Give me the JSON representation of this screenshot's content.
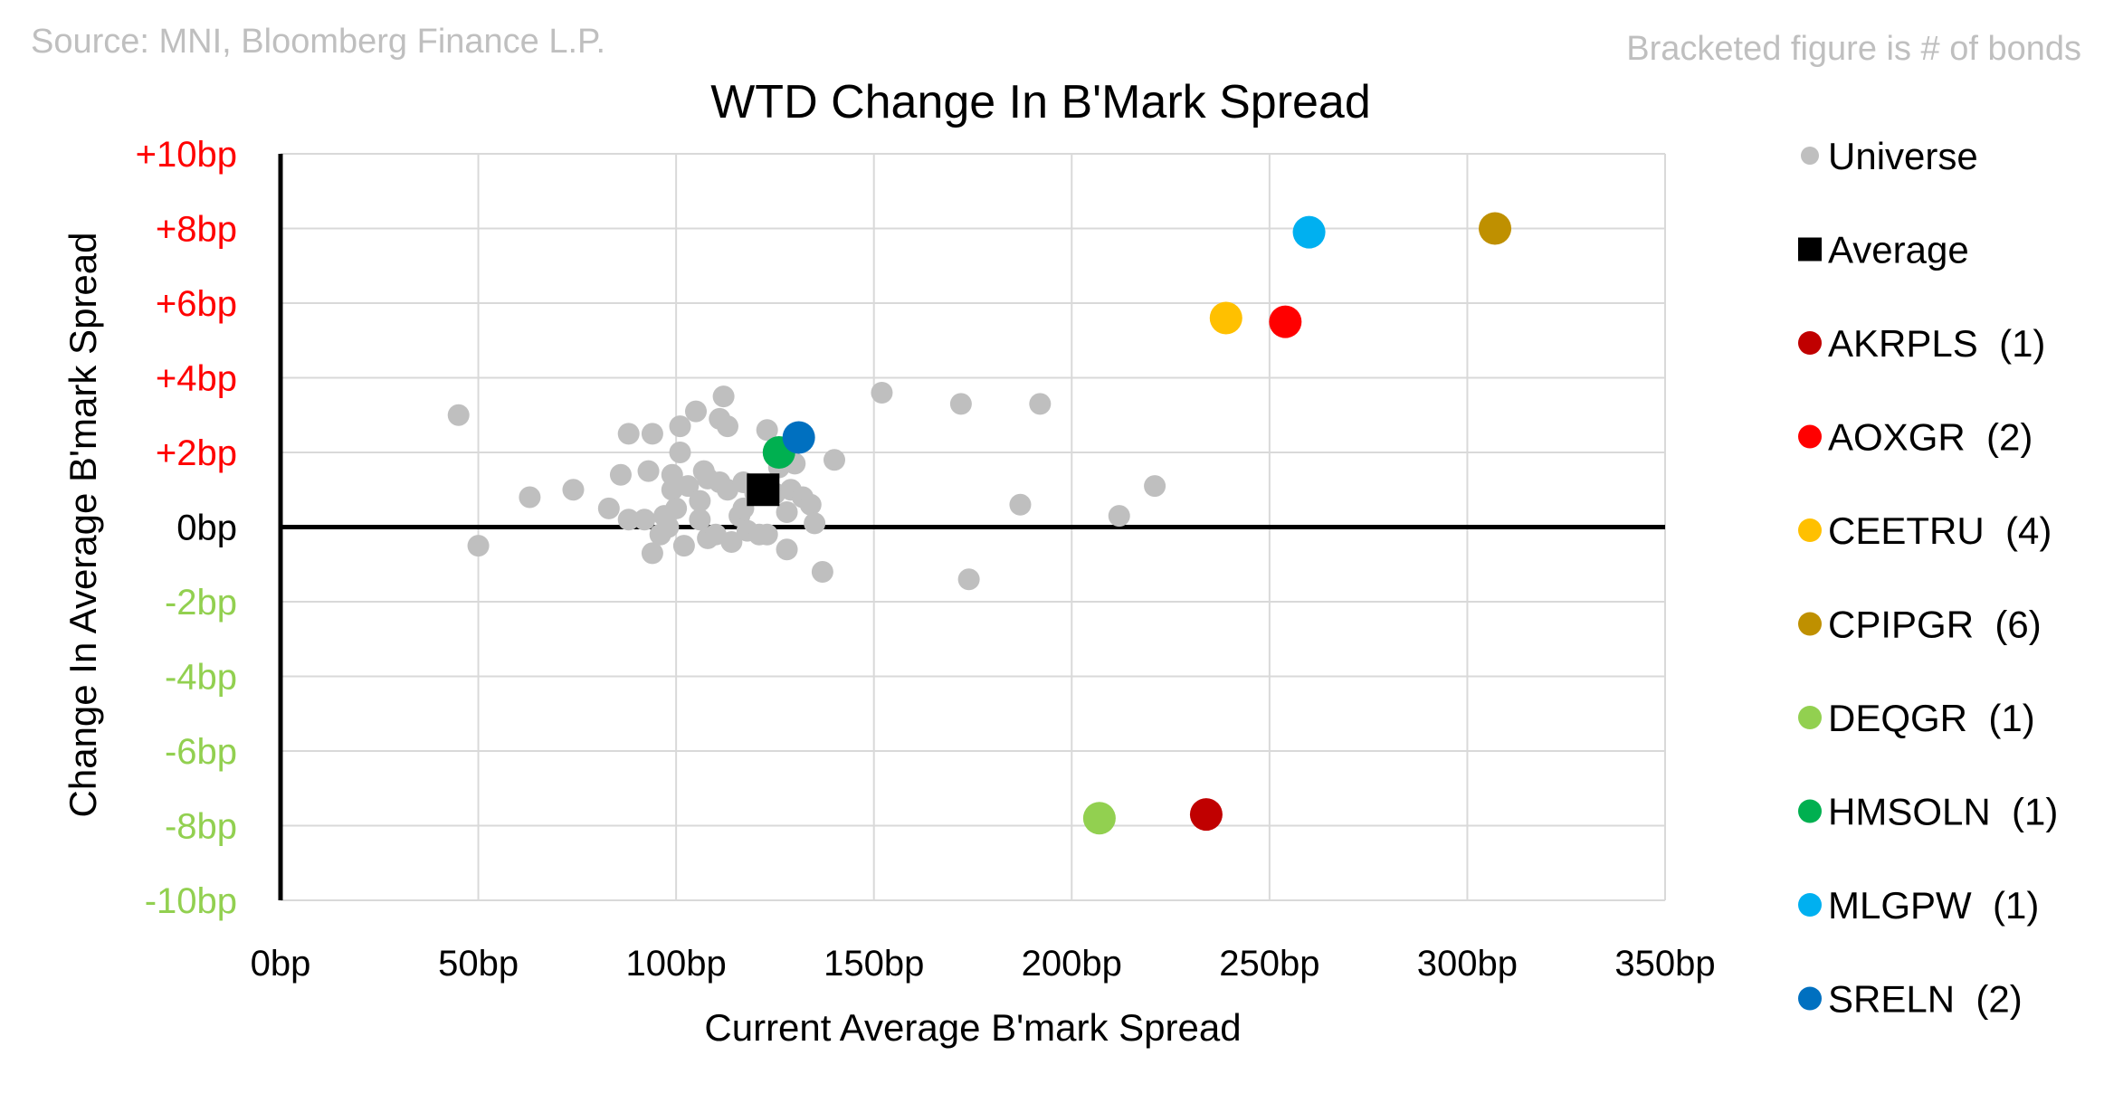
{
  "source_note": "Source: MNI, Bloomberg Finance L.P.",
  "bracket_note": "Bracketed figure is # of bonds",
  "chart_data": {
    "type": "scatter",
    "title": "WTD Change In B'Mark Spread",
    "xlabel": "Current Average B'mark Spread",
    "ylabel": "Change In Average B'mark Spread",
    "xlim": [
      0,
      350
    ],
    "ylim": [
      -10,
      10
    ],
    "x_ticks": [
      {
        "value": 0,
        "label": "0bp"
      },
      {
        "value": 50,
        "label": "50bp"
      },
      {
        "value": 100,
        "label": "100bp"
      },
      {
        "value": 150,
        "label": "150bp"
      },
      {
        "value": 200,
        "label": "200bp"
      },
      {
        "value": 250,
        "label": "250bp"
      },
      {
        "value": 300,
        "label": "300bp"
      },
      {
        "value": 350,
        "label": "350bp"
      }
    ],
    "y_ticks": [
      {
        "value": 10,
        "label": "+10bp",
        "color": "#ff0000"
      },
      {
        "value": 8,
        "label": "+8bp",
        "color": "#ff0000"
      },
      {
        "value": 6,
        "label": "+6bp",
        "color": "#ff0000"
      },
      {
        "value": 4,
        "label": "+4bp",
        "color": "#ff0000"
      },
      {
        "value": 2,
        "label": "+2bp",
        "color": "#ff0000"
      },
      {
        "value": 0,
        "label": "0bp",
        "color": "#000000"
      },
      {
        "value": -2,
        "label": "-2bp",
        "color": "#92d050"
      },
      {
        "value": -4,
        "label": "-4bp",
        "color": "#92d050"
      },
      {
        "value": -6,
        "label": "-6bp",
        "color": "#92d050"
      },
      {
        "value": -8,
        "label": "-8bp",
        "color": "#92d050"
      },
      {
        "value": -10,
        "label": "-10bp",
        "color": "#92d050"
      }
    ],
    "grid": true,
    "legend_position": "right",
    "series": [
      {
        "name": "Universe",
        "legend_label": "Universe",
        "color": "#bfbfbf",
        "marker": "circle",
        "points": [
          [
            45,
            3.0
          ],
          [
            50,
            -0.5
          ],
          [
            63,
            0.8
          ],
          [
            74,
            1.0
          ],
          [
            83,
            0.5
          ],
          [
            86,
            1.4
          ],
          [
            88,
            2.5
          ],
          [
            88,
            0.2
          ],
          [
            92,
            0.2
          ],
          [
            93,
            1.5
          ],
          [
            94,
            2.5
          ],
          [
            94,
            -0.7
          ],
          [
            96,
            -0.2
          ],
          [
            97,
            0.3
          ],
          [
            98,
            0.0
          ],
          [
            99,
            1.4
          ],
          [
            99,
            1.0
          ],
          [
            100,
            0.5
          ],
          [
            101,
            2.7
          ],
          [
            101,
            2.0
          ],
          [
            102,
            -0.5
          ],
          [
            103,
            1.1
          ],
          [
            105,
            3.1
          ],
          [
            106,
            0.2
          ],
          [
            106,
            0.7
          ],
          [
            107,
            1.5
          ],
          [
            108,
            1.3
          ],
          [
            108,
            -0.3
          ],
          [
            110,
            -0.2
          ],
          [
            111,
            2.9
          ],
          [
            111,
            1.2
          ],
          [
            112,
            3.5
          ],
          [
            113,
            2.7
          ],
          [
            113,
            1.0
          ],
          [
            114,
            -0.4
          ],
          [
            116,
            0.3
          ],
          [
            117,
            0.5
          ],
          [
            117,
            1.2
          ],
          [
            118,
            -0.1
          ],
          [
            120,
            0.9
          ],
          [
            121,
            -0.2
          ],
          [
            123,
            2.6
          ],
          [
            123,
            -0.2
          ],
          [
            125,
            0.9
          ],
          [
            126,
            1.6
          ],
          [
            128,
            -0.6
          ],
          [
            128,
            0.4
          ],
          [
            129,
            1.0
          ],
          [
            130,
            1.7
          ],
          [
            132,
            0.8
          ],
          [
            134,
            0.6
          ],
          [
            135,
            0.1
          ],
          [
            137,
            -1.2
          ],
          [
            140,
            1.8
          ],
          [
            152,
            3.6
          ],
          [
            172,
            3.3
          ],
          [
            174,
            -1.4
          ],
          [
            187,
            0.6
          ],
          [
            192,
            3.3
          ],
          [
            212,
            0.3
          ],
          [
            221,
            1.1
          ]
        ]
      },
      {
        "name": "Average",
        "legend_label": "Average",
        "color": "#000000",
        "marker": "square",
        "points": [
          [
            122,
            1.0
          ]
        ]
      },
      {
        "name": "AKRPLS",
        "legend_label": "AKRPLS  (1)",
        "color": "#c00000",
        "marker": "circle",
        "points": [
          [
            234,
            -7.7
          ]
        ]
      },
      {
        "name": "AOXGR",
        "legend_label": "AOXGR  (2)",
        "color": "#ff0000",
        "marker": "circle",
        "points": [
          [
            254,
            5.5
          ]
        ]
      },
      {
        "name": "CEETRU",
        "legend_label": "CEETRU  (4)",
        "color": "#ffc000",
        "marker": "circle",
        "points": [
          [
            239,
            5.6
          ]
        ]
      },
      {
        "name": "CPIPGR",
        "legend_label": "CPIPGR  (6)",
        "color": "#bf9000",
        "marker": "circle",
        "points": [
          [
            307,
            8.0
          ]
        ]
      },
      {
        "name": "DEQGR",
        "legend_label": "DEQGR  (1)",
        "color": "#92d050",
        "marker": "circle",
        "points": [
          [
            207,
            -7.8
          ]
        ]
      },
      {
        "name": "HMSOLN",
        "legend_label": "HMSOLN  (1)",
        "color": "#00b050",
        "marker": "circle",
        "points": [
          [
            126,
            2.0
          ]
        ]
      },
      {
        "name": "MLGPW",
        "legend_label": "MLGPW  (1)",
        "color": "#00b0f0",
        "marker": "circle",
        "points": [
          [
            260,
            7.9
          ]
        ]
      },
      {
        "name": "SRELN",
        "legend_label": "SRELN  (2)",
        "color": "#0070c0",
        "marker": "circle",
        "points": [
          [
            131,
            2.4
          ]
        ]
      }
    ]
  }
}
